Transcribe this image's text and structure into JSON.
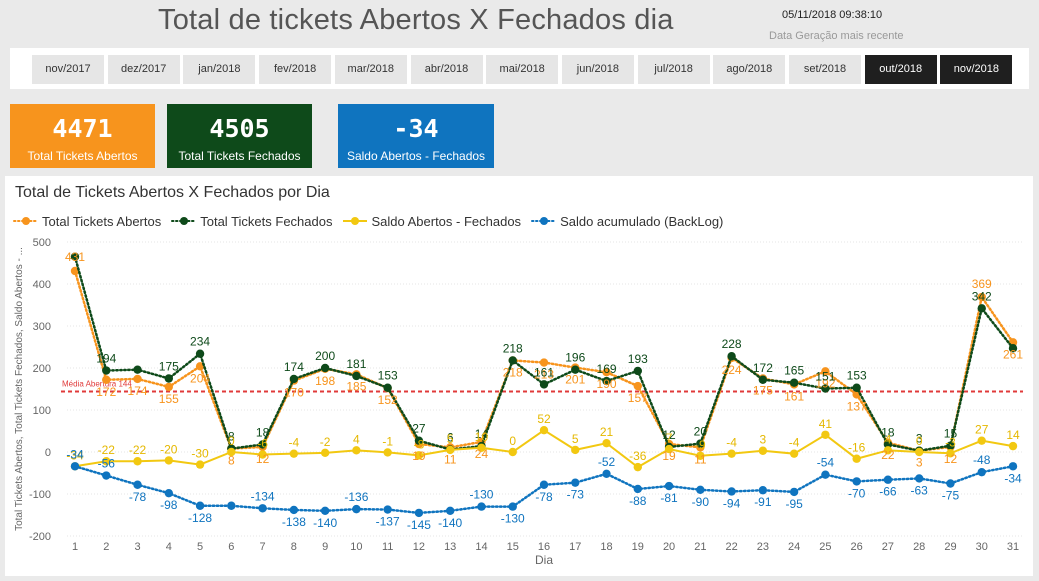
{
  "header": {
    "title": "Total de tickets Abertos X Fechados dia",
    "generated_at": "05/11/2018 09:38:10",
    "generated_label": "Data Geração mais recente"
  },
  "month_slicer": [
    {
      "label": "nov/2017",
      "selected": false
    },
    {
      "label": "dez/2017",
      "selected": false
    },
    {
      "label": "jan/2018",
      "selected": false
    },
    {
      "label": "fev/2018",
      "selected": false
    },
    {
      "label": "mar/2018",
      "selected": false
    },
    {
      "label": "abr/2018",
      "selected": false
    },
    {
      "label": "mai/2018",
      "selected": false
    },
    {
      "label": "jun/2018",
      "selected": false
    },
    {
      "label": "jul/2018",
      "selected": false
    },
    {
      "label": "ago/2018",
      "selected": false
    },
    {
      "label": "set/2018",
      "selected": false
    },
    {
      "label": "out/2018",
      "selected": true
    },
    {
      "label": "nov/2018",
      "selected": true
    }
  ],
  "cards": [
    {
      "value": "4471",
      "label": "Total Tickets Abertos",
      "color": "#f7941d"
    },
    {
      "value": "4505",
      "label": "Total Tickets Fechados",
      "color": "#0e4a1a"
    },
    {
      "value": "-34",
      "label": "Saldo Abertos - Fechados",
      "color": "#0f74bf"
    }
  ],
  "chart_data": {
    "type": "line",
    "title": "Total de Tickets Abertos X Fechados por Dia",
    "xlabel": "Dia",
    "ylabel": "Total Tickets Abertos, Total Tickets Fechados, Saldo Abertos - ...",
    "ylim": [
      -200,
      500
    ],
    "yticks": [
      -200,
      -100,
      0,
      100,
      200,
      300,
      400,
      500
    ],
    "x": [
      1,
      2,
      3,
      4,
      5,
      6,
      7,
      8,
      9,
      10,
      11,
      12,
      13,
      14,
      15,
      16,
      17,
      18,
      19,
      20,
      21,
      22,
      23,
      24,
      25,
      26,
      27,
      28,
      29,
      30,
      31
    ],
    "grid": true,
    "legend_position": "top-left",
    "reference_line": {
      "label": "Média Abertura 144",
      "value": 144,
      "color": "#e03a3a"
    },
    "series": [
      {
        "name": "Total Tickets Abertos",
        "color": "#f7941d",
        "style": "dotted",
        "values": [
          431,
          172,
          174,
          155,
          204,
          8,
          12,
          170,
          198,
          185,
          152,
          19,
          11,
          24,
          218,
          213,
          201,
          190,
          157,
          19,
          11,
          224,
          175,
          161,
          192,
          137,
          22,
          3,
          12,
          369,
          261
        ]
      },
      {
        "name": "Total Tickets Fechados",
        "color": "#0e4a1a",
        "style": "dotted",
        "values": [
          465,
          194,
          196,
          175,
          234,
          8,
          18,
          174,
          200,
          181,
          153,
          27,
          6,
          14,
          218,
          161,
          196,
          169,
          193,
          12,
          20,
          228,
          172,
          165,
          151,
          153,
          18,
          3,
          15,
          342,
          247
        ]
      },
      {
        "name": "Saldo Abertos - Fechados",
        "color": "#f2c811",
        "style": "solid",
        "values": [
          -34,
          -22,
          -22,
          -20,
          -30,
          0,
          -6,
          -4,
          -2,
          4,
          -1,
          -8,
          5,
          10,
          0,
          52,
          5,
          21,
          -36,
          7,
          -9,
          -4,
          3,
          -4,
          41,
          -16,
          4,
          0,
          -3,
          27,
          14
        ]
      },
      {
        "name": "Saldo acumulado (BackLog)",
        "color": "#0f74bf",
        "style": "dotted",
        "values": [
          -34,
          -56,
          -78,
          -98,
          -128,
          -128,
          -134,
          -138,
          -140,
          -136,
          -137,
          -145,
          -140,
          -130,
          -130,
          -78,
          -73,
          -52,
          -88,
          -81,
          -90,
          -94,
          -91,
          -95,
          -54,
          -70,
          -66,
          -63,
          -75,
          -48,
          -34
        ]
      }
    ],
    "data_labels": {
      "Total Tickets Abertos": [
        {
          "x": 1,
          "t": "431"
        },
        {
          "x": 2,
          "t": "172"
        },
        {
          "x": 3,
          "t": "174"
        },
        {
          "x": 4,
          "t": "155"
        },
        {
          "x": 5,
          "t": "204"
        },
        {
          "x": 6,
          "t": "8"
        },
        {
          "x": 7,
          "t": "12"
        },
        {
          "x": 8,
          "t": "170"
        },
        {
          "x": 9,
          "t": "198"
        },
        {
          "x": 10,
          "t": "185"
        },
        {
          "x": 11,
          "t": "152"
        },
        {
          "x": 12,
          "t": "19"
        },
        {
          "x": 13,
          "t": "11"
        },
        {
          "x": 14,
          "t": "24"
        },
        {
          "x": 15,
          "t": "218"
        },
        {
          "x": 16,
          "t": "213"
        },
        {
          "x": 17,
          "t": "201"
        },
        {
          "x": 18,
          "t": "190"
        },
        {
          "x": 19,
          "t": "157"
        },
        {
          "x": 20,
          "t": "19"
        },
        {
          "x": 21,
          "t": "11"
        },
        {
          "x": 22,
          "t": "224"
        },
        {
          "x": 23,
          "t": "175"
        },
        {
          "x": 24,
          "t": "161"
        },
        {
          "x": 25,
          "t": "192"
        },
        {
          "x": 26,
          "t": "137"
        },
        {
          "x": 27,
          "t": "22"
        },
        {
          "x": 28,
          "t": "3"
        },
        {
          "x": 29,
          "t": "12"
        },
        {
          "x": 30,
          "t": "369"
        },
        {
          "x": 31,
          "t": "261"
        }
      ],
      "Total Tickets Fechados": [
        {
          "x": 2,
          "t": "194"
        },
        {
          "x": 4,
          "t": "175"
        },
        {
          "x": 5,
          "t": "234"
        },
        {
          "x": 6,
          "t": "8"
        },
        {
          "x": 7,
          "t": "18"
        },
        {
          "x": 8,
          "t": "174"
        },
        {
          "x": 9,
          "t": "200"
        },
        {
          "x": 10,
          "t": "181"
        },
        {
          "x": 11,
          "t": "153"
        },
        {
          "x": 12,
          "t": "27"
        },
        {
          "x": 13,
          "t": "6"
        },
        {
          "x": 14,
          "t": "14"
        },
        {
          "x": 15,
          "t": "218"
        },
        {
          "x": 16,
          "t": "161"
        },
        {
          "x": 17,
          "t": "196"
        },
        {
          "x": 18,
          "t": "169"
        },
        {
          "x": 19,
          "t": "193"
        },
        {
          "x": 20,
          "t": "12"
        },
        {
          "x": 21,
          "t": "20"
        },
        {
          "x": 22,
          "t": "228"
        },
        {
          "x": 23,
          "t": "172"
        },
        {
          "x": 24,
          "t": "165"
        },
        {
          "x": 25,
          "t": "151"
        },
        {
          "x": 26,
          "t": "153"
        },
        {
          "x": 27,
          "t": "18"
        },
        {
          "x": 28,
          "t": "3"
        },
        {
          "x": 29,
          "t": "15"
        },
        {
          "x": 30,
          "t": "342"
        }
      ],
      "Saldo Abertos - Fechados": [
        {
          "x": 1,
          "t": "-34"
        },
        {
          "x": 2,
          "t": "-22"
        },
        {
          "x": 3,
          "t": "-22"
        },
        {
          "x": 4,
          "t": "-20"
        },
        {
          "x": 5,
          "t": "-30"
        },
        {
          "x": 6,
          "t": "0"
        },
        {
          "x": 7,
          "t": "-6"
        },
        {
          "x": 8,
          "t": "-4"
        },
        {
          "x": 9,
          "t": "-2"
        },
        {
          "x": 10,
          "t": "4"
        },
        {
          "x": 11,
          "t": "-1"
        },
        {
          "x": 12,
          "t": "-8"
        },
        {
          "x": 13,
          "t": "5"
        },
        {
          "x": 14,
          "t": "10"
        },
        {
          "x": 15,
          "t": "0"
        },
        {
          "x": 16,
          "t": "52"
        },
        {
          "x": 17,
          "t": "5"
        },
        {
          "x": 18,
          "t": "21"
        },
        {
          "x": 19,
          "t": "-36"
        },
        {
          "x": 20,
          "t": "7"
        },
        {
          "x": 21,
          "t": "-9"
        },
        {
          "x": 22,
          "t": "-4"
        },
        {
          "x": 23,
          "t": "3"
        },
        {
          "x": 24,
          "t": "-4"
        },
        {
          "x": 25,
          "t": "41"
        },
        {
          "x": 26,
          "t": "-16"
        },
        {
          "x": 27,
          "t": "4"
        },
        {
          "x": 28,
          "t": "0"
        },
        {
          "x": 29,
          "t": "-3"
        },
        {
          "x": 30,
          "t": "27"
        },
        {
          "x": 31,
          "t": "14"
        }
      ],
      "Saldo acumulado (BackLog)": [
        {
          "x": 1,
          "t": "-34"
        },
        {
          "x": 2,
          "t": "-56"
        },
        {
          "x": 3,
          "t": "-78"
        },
        {
          "x": 4,
          "t": "-98"
        },
        {
          "x": 5,
          "t": "-128"
        },
        {
          "x": 7,
          "t": "-134"
        },
        {
          "x": 8,
          "t": "-138"
        },
        {
          "x": 9,
          "t": "-140"
        },
        {
          "x": 10,
          "t": "-136"
        },
        {
          "x": 11,
          "t": "-137"
        },
        {
          "x": 12,
          "t": "-145"
        },
        {
          "x": 13,
          "t": "-140"
        },
        {
          "x": 14,
          "t": "-130"
        },
        {
          "x": 15,
          "t": "-130"
        },
        {
          "x": 16,
          "t": "-78"
        },
        {
          "x": 17,
          "t": "-73"
        },
        {
          "x": 18,
          "t": "-52"
        },
        {
          "x": 19,
          "t": "-88"
        },
        {
          "x": 20,
          "t": "-81"
        },
        {
          "x": 21,
          "t": "-90"
        },
        {
          "x": 22,
          "t": "-94"
        },
        {
          "x": 23,
          "t": "-91"
        },
        {
          "x": 24,
          "t": "-95"
        },
        {
          "x": 25,
          "t": "-54"
        },
        {
          "x": 26,
          "t": "-70"
        },
        {
          "x": 27,
          "t": "-66"
        },
        {
          "x": 28,
          "t": "-63"
        },
        {
          "x": 29,
          "t": "-75"
        },
        {
          "x": 30,
          "t": "-48"
        },
        {
          "x": 31,
          "t": "-34"
        }
      ]
    }
  }
}
